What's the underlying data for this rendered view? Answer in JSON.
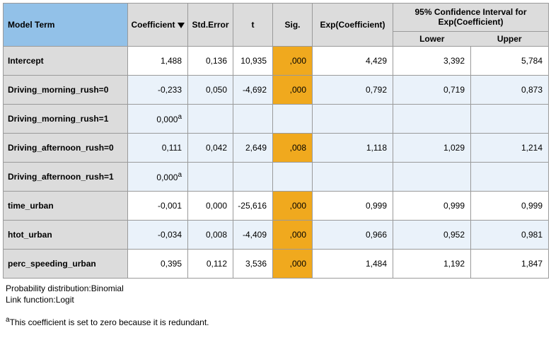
{
  "columns": {
    "model_term": "Model Term",
    "coefficient": "Coefficient",
    "std_error": "Std.Error",
    "t": "t",
    "sig": "Sig.",
    "exp_coef": "Exp(Coefficient)",
    "ci_group": "95% Confidence Interval for Exp(Coefficient)",
    "ci_lower": "Lower",
    "ci_upper": "Upper"
  },
  "col_widths": {
    "model_term": 176,
    "coefficient": 85,
    "std_error": 64,
    "t": 56,
    "sig": 56,
    "exp_coef": 114,
    "ci_lower": 110,
    "ci_upper": 110
  },
  "header_bg": "#92c1e8",
  "header_grey_bg": "#dcdcdc",
  "alt_row_bg": "#eaf2fa",
  "sig_bg": "#f0a91e",
  "border_color": "#9a9a9a",
  "font_family": "Arial",
  "font_size_pt": 9,
  "table_type": "table",
  "rows": [
    {
      "label": "Intercept",
      "coef": "1,488",
      "se": "0,136",
      "t": "10,935",
      "sig": ",000",
      "exp": "4,429",
      "lower": "3,392",
      "upper": "5,784",
      "alt": false
    },
    {
      "label": "Driving_morning_rush=0",
      "coef": "-0,233",
      "se": "0,050",
      "t": "-4,692",
      "sig": ",000",
      "exp": "0,792",
      "lower": "0,719",
      "upper": "0,873",
      "alt": true
    },
    {
      "label": "Driving_morning_rush=1",
      "coef_html": "0,000ª",
      "empty_rest": true,
      "alt": true
    },
    {
      "label": "Driving_afternoon_rush=0",
      "coef": "0,111",
      "se": "0,042",
      "t": "2,649",
      "sig": ",008",
      "exp": "1,118",
      "lower": "1,029",
      "upper": "1,214",
      "alt": true
    },
    {
      "label": "Driving_afternoon_rush=1",
      "coef_html": "0,000ª",
      "empty_rest": true,
      "alt": true
    },
    {
      "label": "time_urban",
      "coef": "-0,001",
      "se": "0,000",
      "t": "-25,616",
      "sig": ",000",
      "exp": "0,999",
      "lower": "0,999",
      "upper": "0,999",
      "alt": false
    },
    {
      "label": "htot_urban",
      "coef": "-0,034",
      "se": "0,008",
      "t": "-4,409",
      "sig": ",000",
      "exp": "0,966",
      "lower": "0,952",
      "upper": "0,981",
      "alt": true
    },
    {
      "label": "perc_speeding_urban",
      "coef": "0,395",
      "se": "0,112",
      "t": "3,536",
      "sig": ",000",
      "exp": "1,484",
      "lower": "1,192",
      "upper": "1,847",
      "alt": false
    }
  ],
  "footer": {
    "line1": "Probability distribution:Binomial",
    "line2": "Link function:Logit",
    "note_marker": "a",
    "note_text": "This coefficient is set to zero because it is redundant."
  }
}
